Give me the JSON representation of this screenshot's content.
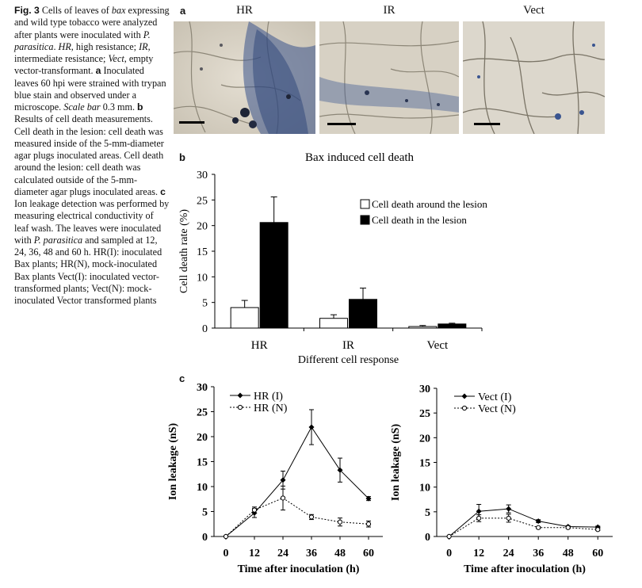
{
  "figure": {
    "caption_html": "<b>Fig. 3</b> Cells of leaves of <i>bax</i> expressing and wild type tobacco were analyzed after plants were inoculated with <i>P. parasitica</i>. <i>HR</i>, high resistance; <i>IR</i>, intermediate resistance; <i>Vect</i>, empty vector-transformant. <b>a</b> Inoculated leaves 60 hpi were strained with trypan blue stain and observed under a microscope. <i>Scale bar</i> 0.3 mm. <b>b</b> Results of cell death measurements. Cell death in the lesion: cell death was measured inside of the 5-mm-diameter agar plugs inoculated areas. Cell death around the lesion: cell death was calculated outside of the 5-mm-diameter agar plugs inoculated areas. <b>c</b> Ion leakage detection was performed by measuring electrical conductivity of leaf wash. The leaves were inoculated with <i>P. parasitica</i> and sampled at 12, 24, 36, 48 and 60 h. HR(I): inoculated Bax plants; HR(N), mock-inoculated Bax plants Vect(I): inoculated vector-transformed plants; Vect(N): mock-inoculated Vector transformed plants"
  },
  "panels": {
    "a": "a",
    "b": "b",
    "c": "c"
  },
  "micrographs": [
    {
      "label": "HR"
    },
    {
      "label": "IR"
    },
    {
      "label": "Vect"
    }
  ],
  "colors": {
    "bar_around": "#ffffff",
    "bar_in": "#000000",
    "leaf_bg": "#d9d3c6",
    "trypan_blue": "#2f4f86"
  },
  "chart_data": [
    {
      "type": "bar",
      "title": "Bax induced cell death",
      "xlabel": "Different cell response",
      "ylabel": "Cell death rate (%)",
      "categories": [
        "HR",
        "IR",
        "Vect"
      ],
      "ylim": [
        0,
        30
      ],
      "yticks": [
        0,
        5,
        10,
        15,
        20,
        25,
        30
      ],
      "legend_position": "inside-right",
      "series": [
        {
          "name": "Cell death around the lesion",
          "values": [
            4.0,
            1.9,
            0.3
          ],
          "errors": [
            1.4,
            0.7,
            0.2
          ]
        },
        {
          "name": "Cell death in the lesion",
          "values": [
            20.6,
            5.6,
            0.8
          ],
          "errors": [
            5.0,
            2.2,
            0.15
          ]
        }
      ]
    },
    {
      "type": "line",
      "xlabel": "Time after inoculation (h)",
      "ylabel": "Ion leakage (nS)",
      "x": [
        0,
        12,
        24,
        36,
        48,
        60
      ],
      "xlim": [
        -5,
        66
      ],
      "ylim": [
        0,
        30
      ],
      "yticks": [
        0,
        5,
        10,
        15,
        20,
        25,
        30
      ],
      "legend_position": "top-left",
      "series": [
        {
          "name": "HR (I)",
          "marker": "filled-diamond",
          "line": "solid",
          "values": [
            0,
            4.7,
            11.3,
            21.9,
            13.3,
            7.6
          ],
          "errors": [
            0,
            0.9,
            1.8,
            3.5,
            2.4,
            0.4
          ]
        },
        {
          "name": "HR (N)",
          "marker": "open-circle",
          "line": "dotted",
          "values": [
            0,
            5.3,
            7.7,
            3.9,
            2.9,
            2.5
          ],
          "errors": [
            0,
            0.6,
            2.4,
            0.5,
            0.8,
            0.6
          ]
        }
      ]
    },
    {
      "type": "line",
      "xlabel": "Time after inoculation (h)",
      "ylabel": "Ion leakage (nS)",
      "x": [
        0,
        12,
        24,
        36,
        48,
        60
      ],
      "xlim": [
        -5,
        66
      ],
      "ylim": [
        0,
        30
      ],
      "yticks": [
        0,
        5,
        10,
        15,
        20,
        25,
        30
      ],
      "legend_position": "top-left",
      "series": [
        {
          "name": "Vect (I)",
          "marker": "filled-diamond",
          "line": "solid",
          "values": [
            0,
            5.1,
            5.6,
            3.1,
            2.0,
            1.9
          ],
          "errors": [
            0,
            1.4,
            0.8,
            0.3,
            0.2,
            0.2
          ]
        },
        {
          "name": "Vect (N)",
          "marker": "open-circle",
          "line": "dotted",
          "values": [
            0,
            3.7,
            3.7,
            1.8,
            1.8,
            1.4
          ],
          "errors": [
            0,
            0.7,
            0.8,
            0.2,
            0.2,
            0.2
          ]
        }
      ]
    }
  ]
}
